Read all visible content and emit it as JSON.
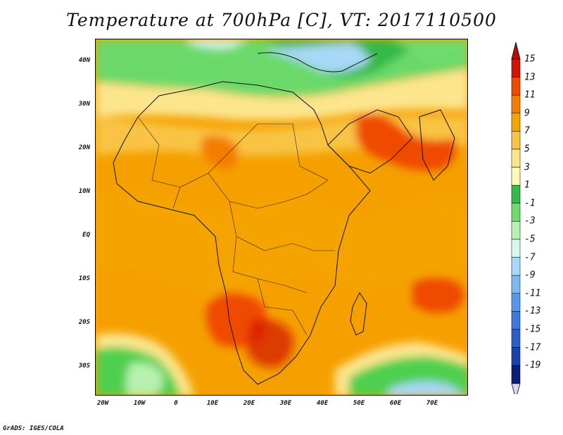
{
  "title": "Temperature at 700hPa [C], VT: 2017110500",
  "footer": "GrADS: IGES/COLA",
  "lat_labels": [
    "40N",
    "30N",
    "20N",
    "10N",
    "EQ",
    "10S",
    "20S",
    "30S"
  ],
  "lon_labels": [
    "20W",
    "10W",
    "0",
    "10E",
    "20E",
    "30E",
    "40E",
    "50E",
    "60E",
    "70E"
  ],
  "colorbar": {
    "labels": [
      "15",
      "13",
      "11",
      "9",
      "7",
      "5",
      "3",
      "1",
      "-1",
      "-3",
      "-5",
      "-7",
      "-9",
      "-11",
      "-13",
      "-15",
      "-17",
      "-19"
    ],
    "colors": [
      "#d21400",
      "#f04a00",
      "#f47d00",
      "#f5a400",
      "#f9c445",
      "#fde58e",
      "#fff9b8",
      "#36b94a",
      "#6fdb6f",
      "#b7f0b0",
      "#d7f7ef",
      "#a8d8f7",
      "#7cb8f3",
      "#5597ec",
      "#3d79e0",
      "#2c5dcc",
      "#1b40b0",
      "#0c1e7a"
    ],
    "top_arrow_color": "#b80d00",
    "bottom_arrow_color": "#d8d4f2"
  }
}
